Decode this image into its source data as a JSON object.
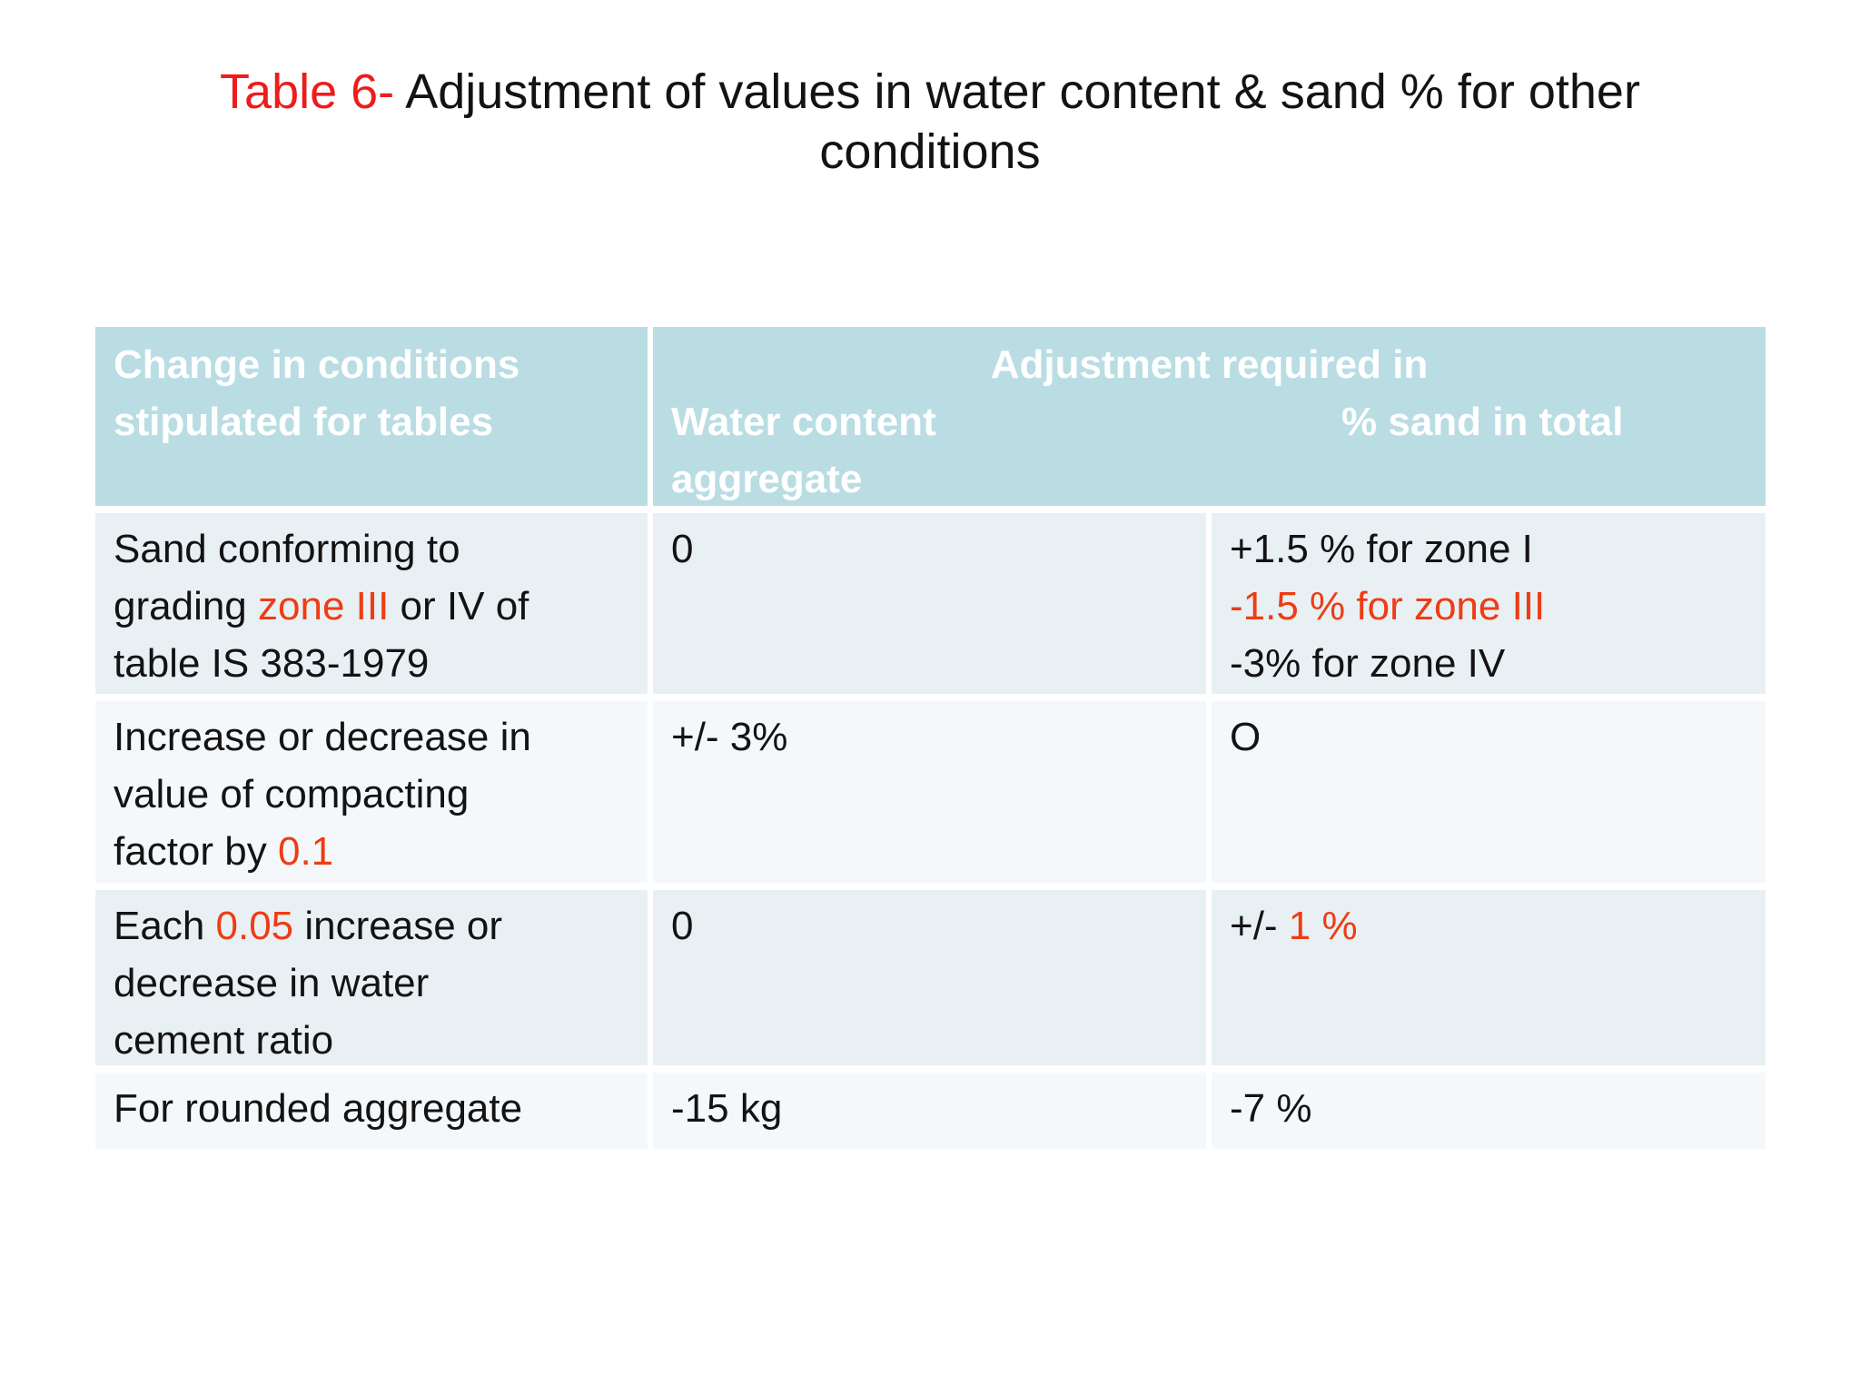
{
  "colors": {
    "title_red": "#ee1c1c",
    "accent_red": "#ee3c15",
    "header_bg": "#b9dde3",
    "header_text": "#ffffff",
    "row_dark_bg": "#e9f0f4",
    "row_light_bg": "#f5f8fa",
    "body_text": "#131313"
  },
  "title": {
    "table_label": "Table 6-",
    "line1": " Adjustment of values in water content & sand % for other",
    "line2": "conditions"
  },
  "table": {
    "header": {
      "col1": "Change in conditions stipulated for tables",
      "adjustment_title": "Adjustment required in",
      "water_content": "Water content",
      "sand_total": "% sand in total",
      "aggregate": "aggregate"
    },
    "rows": [
      {
        "cells": [
          [
            {
              "t": "Sand conforming to",
              "nl": true
            },
            {
              "t": "grading "
            },
            {
              "t": "zone III",
              "red": true
            },
            {
              "t": " or IV of",
              "nl": true
            },
            {
              "t": "table IS 383-1979"
            }
          ],
          [
            {
              "t": "0"
            }
          ],
          [
            {
              "t": "+1.5 % for zone I",
              "nl": true
            },
            {
              "t": "-1.5 % for zone III",
              "red": true,
              "nl": true
            },
            {
              "t": "-3% for zone IV"
            }
          ]
        ]
      },
      {
        "cells": [
          [
            {
              "t": "Increase or decrease in",
              "nl": true
            },
            {
              "t": "value of compacting",
              "nl": true
            },
            {
              "t": "factor by "
            },
            {
              "t": "0.1",
              "red": true
            }
          ],
          [
            {
              "t": "+/- 3%"
            }
          ],
          [
            {
              "t": "O"
            }
          ]
        ]
      },
      {
        "cells": [
          [
            {
              "t": "Each "
            },
            {
              "t": "0.05",
              "red": true
            },
            {
              "t": " increase or",
              "nl": true
            },
            {
              "t": "decrease in water",
              "nl": true
            },
            {
              "t": "cement ratio"
            }
          ],
          [
            {
              "t": "0"
            }
          ],
          [
            {
              "t": "+/- "
            },
            {
              "t": "1 %",
              "red": true
            }
          ]
        ]
      },
      {
        "cells": [
          [
            {
              "t": "For rounded aggregate"
            }
          ],
          [
            {
              "t": "-15 kg"
            }
          ],
          [
            {
              "t": "-7 %"
            }
          ]
        ]
      }
    ]
  }
}
